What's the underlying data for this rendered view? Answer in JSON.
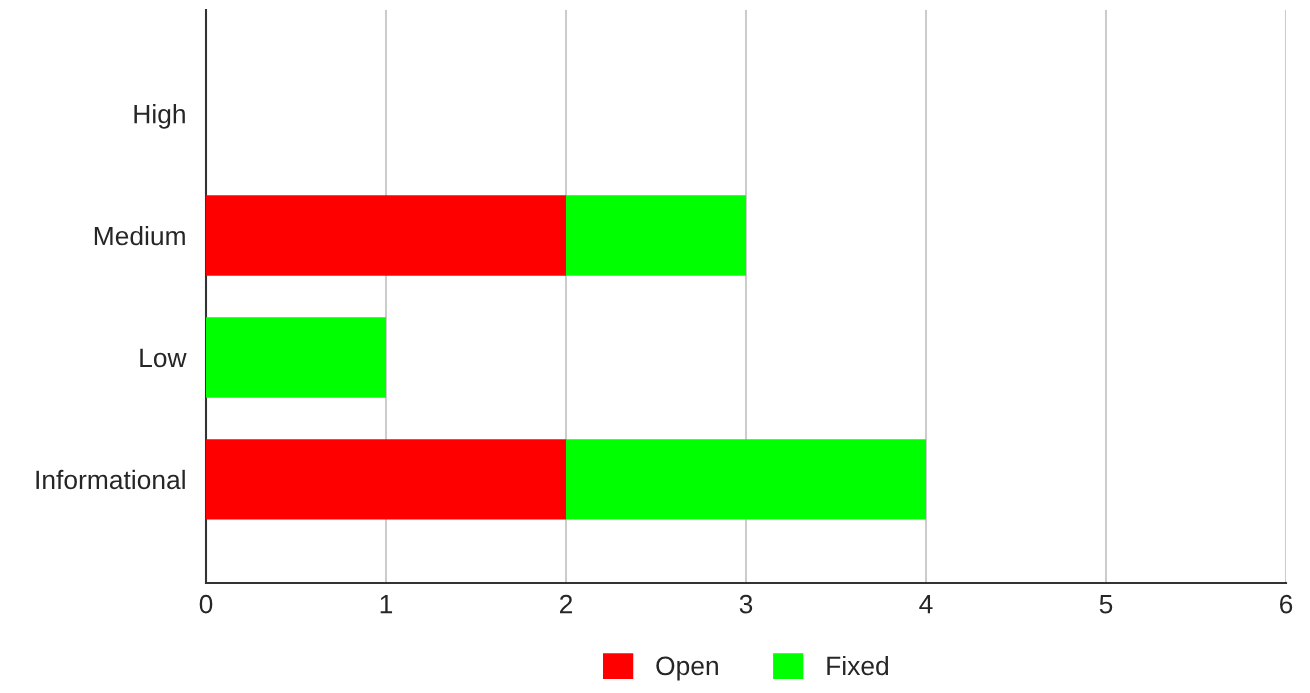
{
  "chart_data": {
    "type": "bar",
    "orientation": "horizontal",
    "stacked": true,
    "categories": [
      "High",
      "Medium",
      "Low",
      "Informational"
    ],
    "series": [
      {
        "name": "Open",
        "color": "#ff0000",
        "values": [
          0,
          2,
          0,
          2
        ]
      },
      {
        "name": "Fixed",
        "color": "#00ff00",
        "values": [
          0,
          1,
          1,
          2
        ]
      }
    ],
    "xlim": [
      0,
      6
    ],
    "xticks": [
      0,
      1,
      2,
      3,
      4,
      5,
      6
    ],
    "grid": "x",
    "legend": "bottom"
  }
}
